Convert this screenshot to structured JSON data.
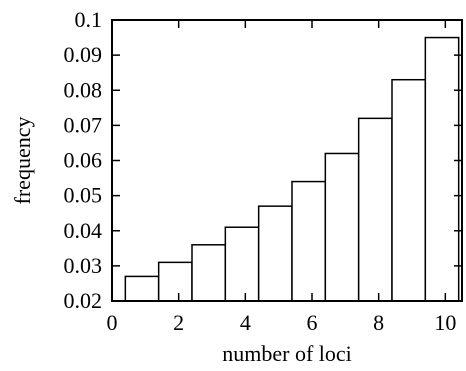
{
  "chart_data": {
    "type": "bar",
    "title": "",
    "xlabel": "number of loci",
    "ylabel": "frequency",
    "xlim": [
      0,
      10.5
    ],
    "ylim": [
      0.02,
      0.1
    ],
    "grid": false,
    "xticks": [
      0,
      2,
      4,
      6,
      8,
      10
    ],
    "xtick_labels": [
      "0",
      "2",
      "4",
      "6",
      "8",
      "10"
    ],
    "yticks": [
      0.02,
      0.03,
      0.04,
      0.05,
      0.06,
      0.07,
      0.08,
      0.09,
      0.1
    ],
    "ytick_labels": [
      "0.02",
      "0.03",
      "0.04",
      "0.05",
      "0.06",
      "0.07",
      "0.08",
      "0.09",
      "0.1"
    ],
    "bins": [
      {
        "x_start": 0.4,
        "x_end": 1.4,
        "value": 0.027
      },
      {
        "x_start": 1.4,
        "x_end": 2.4,
        "value": 0.031
      },
      {
        "x_start": 2.4,
        "x_end": 3.4,
        "value": 0.036
      },
      {
        "x_start": 3.4,
        "x_end": 4.4,
        "value": 0.041
      },
      {
        "x_start": 4.4,
        "x_end": 5.4,
        "value": 0.047
      },
      {
        "x_start": 5.4,
        "x_end": 6.4,
        "value": 0.054
      },
      {
        "x_start": 6.4,
        "x_end": 7.4,
        "value": 0.062
      },
      {
        "x_start": 7.4,
        "x_end": 8.4,
        "value": 0.072
      },
      {
        "x_start": 8.4,
        "x_end": 9.4,
        "value": 0.083
      },
      {
        "x_start": 9.4,
        "x_end": 10.4,
        "value": 0.095
      }
    ],
    "colors": {
      "bar_fill": "#ffffff",
      "bar_stroke": "#000000",
      "axis": "#000000"
    }
  }
}
